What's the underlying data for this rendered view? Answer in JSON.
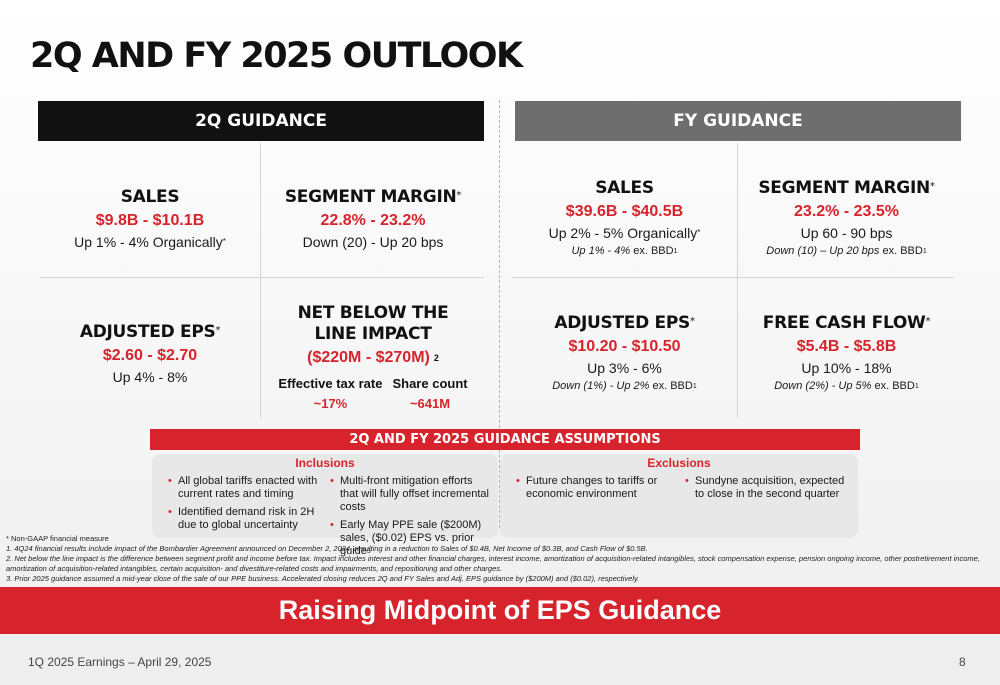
{
  "title": "2Q AND FY 2025 OUTLOOK",
  "q2": {
    "header": "2Q GUIDANCE",
    "sales": {
      "label": "SALES",
      "value": "$9.8B - $10.1B",
      "sub": "Up 1% - 4% Organically",
      "sub_mark": "*"
    },
    "segment_margin": {
      "label": "SEGMENT MARGIN",
      "label_mark": "*",
      "value": "22.8% - 23.2%",
      "sub": "Down (20) - Up 20 bps"
    },
    "adjusted_eps": {
      "label": "ADJUSTED EPS",
      "label_mark": "*",
      "value": "$2.60 - $2.70",
      "sub": "Up 4% - 8%"
    },
    "net_below": {
      "label_line1": "NET BELOW THE",
      "label_line2": "LINE IMPACT",
      "value": "($220M - $270M)",
      "value_mark": "2",
      "tax_label": "Effective tax rate",
      "tax_value": "~17%",
      "share_label": "Share count",
      "share_value": "~641M"
    }
  },
  "fy": {
    "header": "FY GUIDANCE",
    "sales": {
      "label": "SALES",
      "value": "$39.6B - $40.5B",
      "sub": "Up 2% - 5% Organically",
      "sub_mark": "*",
      "note": "Up 1% - 4%",
      "note_suffix": " ex. BBD",
      "note_mark": "1"
    },
    "segment_margin": {
      "label": "SEGMENT MARGIN",
      "label_mark": "*",
      "value": "23.2% - 23.5%",
      "sub": "Up 60 - 90 bps",
      "note": "Down (10) – Up 20 bps",
      "note_suffix": " ex. BBD",
      "note_mark": "1"
    },
    "adjusted_eps": {
      "label": "ADJUSTED EPS",
      "label_mark": "*",
      "value": "$10.20 - $10.50",
      "sub": "Up 3% - 6%",
      "note": "Down (1%) - Up 2%",
      "note_suffix": " ex. BBD",
      "note_mark": "1"
    },
    "free_cash_flow": {
      "label": "FREE CASH FLOW",
      "label_mark": "*",
      "value": "$5.4B - $5.8B",
      "sub": "Up 10% - 18%",
      "note": "Down (2%) - Up 5%",
      "note_suffix": " ex. BBD",
      "note_mark": "1"
    }
  },
  "assumptions": {
    "header": "2Q AND FY 2025 GUIDANCE ASSUMPTIONS",
    "inclusions_title": "Inclusions",
    "inclusions_left": [
      "All global tariffs enacted with current rates and timing",
      "Identified demand risk in 2H due to global uncertainty"
    ],
    "inclusions_right": [
      "Multi-front mitigation efforts that will fully offset incremental costs",
      "Early May PPE sale ($200M) sales, ($0.02) EPS vs. prior guide"
    ],
    "inclusions_right_mark": "3",
    "exclusions_title": "Exclusions",
    "exclusions_left": [
      "Future changes to tariffs or economic environment"
    ],
    "exclusions_right": [
      "Sundyne acquisition, expected to close in the second quarter"
    ]
  },
  "footnotes": [
    "* Non-GAAP financial measure",
    "1. 4Q24 financial results include impact of the Bombardier Agreement announced on December 2, 2024, resulting in a reduction to Sales of $0.4B, Net Income of $0.3B, and Cash Flow of $0.5B.",
    "2. Net below the line impact is the difference between segment profit and income before tax. Impact includes interest and other financial charges, interest income, amortization of acquisition-related intangibles, stock compensation expense, pension ongoing income, other postretirement income, amortization of acquisition-related intangibles, certain acquisition- and divestiture-related costs and impairments, and repositioning and other charges.",
    "3. Prior 2025 guidance assumed a mid-year close of the sale of our PPE business. Accelerated closing reduces 2Q and FY Sales and Adj. EPS guidance by ($200M) and ($0.02), respectively."
  ],
  "banner": "Raising Midpoint of EPS Guidance",
  "footer": {
    "left": "1Q 2025 Earnings – April 29, 2025",
    "page": "8"
  },
  "colors": {
    "accent_red": "#d6232c",
    "header_black": "#111111",
    "header_gray": "#6e6e6e"
  }
}
